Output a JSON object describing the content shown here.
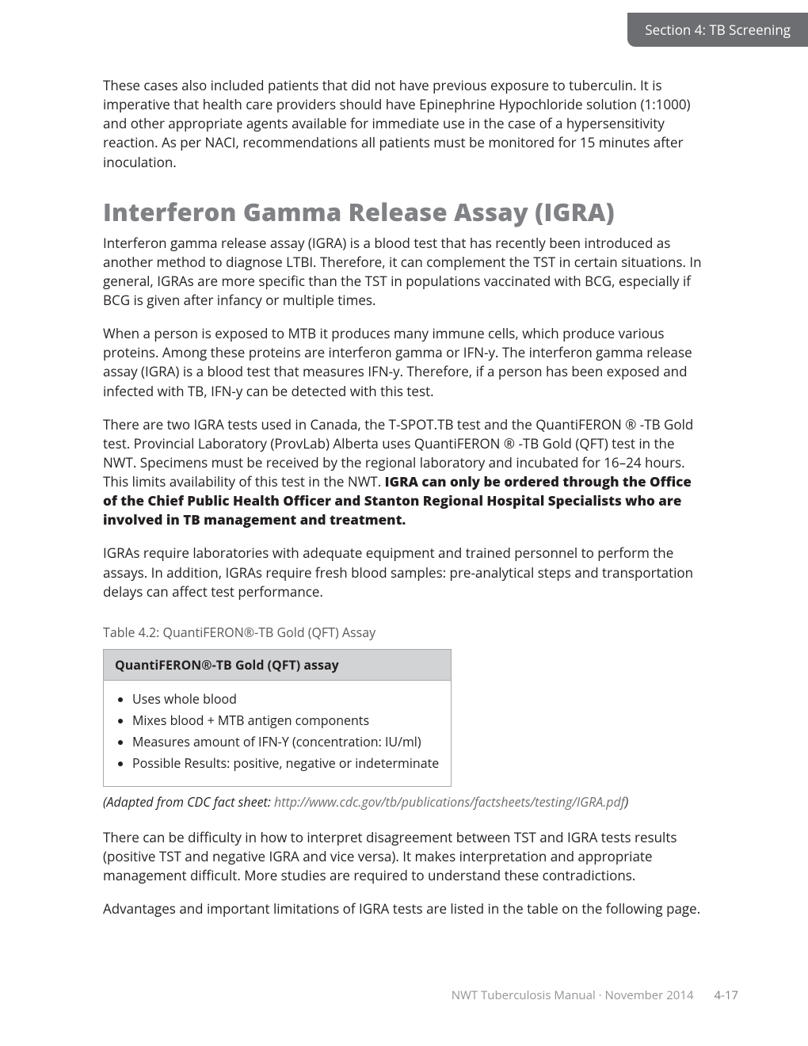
{
  "header": {
    "section_tab": "Section 4: TB Screening",
    "tab_bg": "#6d6e71",
    "tab_color": "#ffffff"
  },
  "intro_para": "These cases also included patients that did not have previous exposure to tuberculin. It is imperative that health care providers should have Epinephrine Hypochloride solution (1:1000) and other appropriate agents available for immediate use in the case of a hypersensitivity reaction. As per NACI, recommendations all patients must be monitored for 15 minutes after inoculation.",
  "heading": "Interferon Gamma Release Assay (IGRA)",
  "heading_color": "#808285",
  "para1": "Interferon gamma release assay (IGRA) is a blood test that has recently been introduced as another method to diagnose LTBI. Therefore, it can complement the TST in certain situations. In general, IGRAs are more specific than the TST in populations vaccinated with BCG, especially if BCG is given after infancy or multiple times.",
  "para2": "When a person is exposed to MTB it produces many immune cells, which produce various proteins. Among these proteins are interferon gamma or IFN-y. The interferon gamma release assay (IGRA) is a blood test that measures IFN-y. Therefore, if a person has been exposed and infected with TB, IFN-y can be detected with this test.",
  "para3_a": "There are two IGRA tests used in Canada, the T-SPOT.TB test and the QuantiFERON ® -TB Gold test. Provincial Laboratory (ProvLab) Alberta uses QuantiFERON ® -TB Gold (QFT) test in the NWT. Specimens must be received by the regional laboratory and incubated for 16–24 hours. This limits availability of this test in the NWT. ",
  "para3_bold": "IGRA can only be ordered through the Office of the Chief Public Health Officer and Stanton Regional Hospital Specialists who are involved in TB management and treatment.",
  "para4": "IGRAs require laboratories with adequate equipment and trained personnel to perform the assays. In addition, IGRAs require fresh blood samples: pre-analytical steps and transportation delays can affect test performance.",
  "table": {
    "caption": "Table 4.2: QuantiFERON®-TB Gold (QFT) Assay",
    "header": "QuantiFERON®-TB Gold (QFT) assay",
    "header_bg": "#d1d3d4",
    "border_color": "#a7a9ac",
    "items": [
      "Uses whole blood",
      "Mixes blood + MTB antigen components",
      "Measures amount of IFN-Y (concentration: IU/ml)",
      "Possible Results: positive, negative or indeterminate"
    ]
  },
  "citation_prefix": "(Adapted from CDC fact sheet: ",
  "citation_link": "http://www.cdc.gov/tb/publications/factsheets/testing/IGRA.pdf",
  "citation_suffix": ")",
  "para5": "There can be difficulty in how to interpret disagreement between TST and IGRA tests results (positive TST and negative IGRA and vice versa). It makes interpretation and appropriate management difficult. More studies are required to understand these contradictions.",
  "para6": "Advantages and important limitations of IGRA tests are listed in the table on the following page.",
  "footer": {
    "doc_title": "NWT Tuberculosis Manual · November 2014",
    "page_number": "4-17",
    "color": "#939598"
  }
}
